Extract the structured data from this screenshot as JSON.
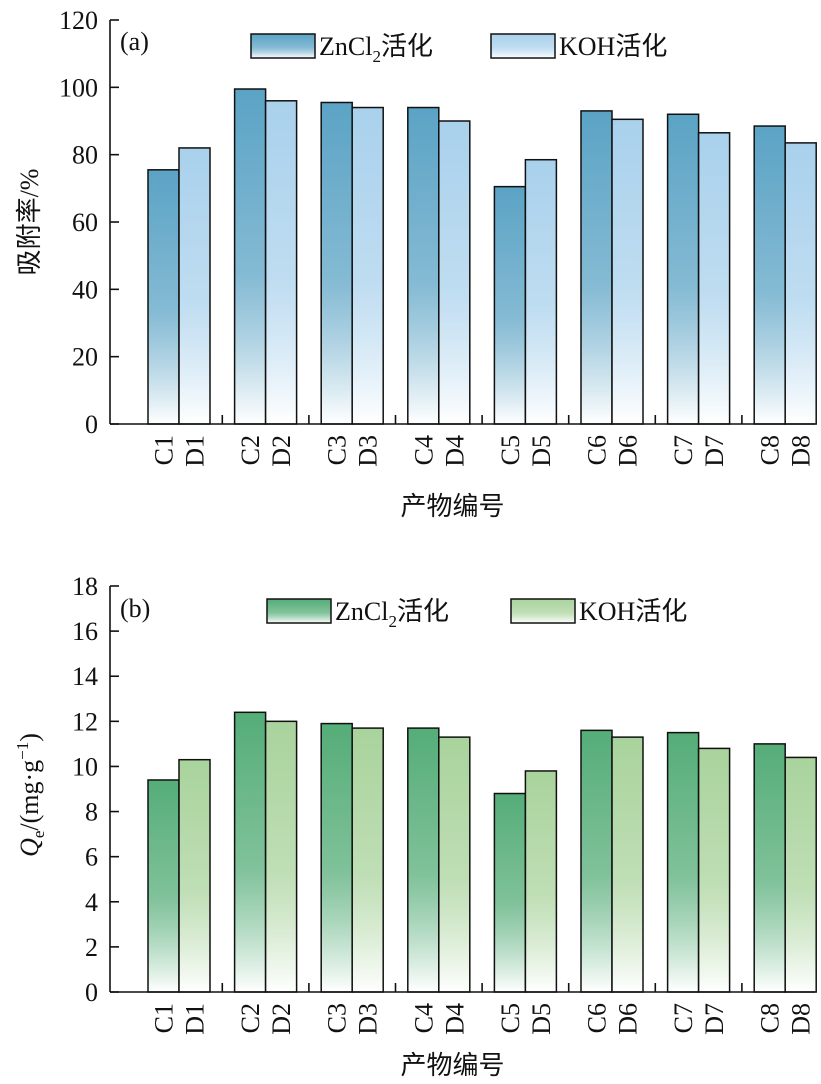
{
  "chart_data": [
    {
      "type": "bar",
      "panel_label": "(a)",
      "ylabel": "吸附率/%",
      "xlabel": "产物编号",
      "ylim": [
        0,
        120
      ],
      "yticks": [
        0,
        20,
        40,
        60,
        80,
        100,
        120
      ],
      "pairs": [
        "1",
        "2",
        "3",
        "4",
        "5",
        "6",
        "7",
        "8"
      ],
      "series": [
        {
          "name": "ZnCl2活化",
          "legend_base": "ZnCl",
          "legend_sub": "2",
          "legend_tail": "活化",
          "prefix": "C",
          "color": "#5ba3c5",
          "values": [
            75.5,
            99.5,
            95.5,
            94.0,
            70.5,
            93.0,
            92.0,
            88.5
          ]
        },
        {
          "name": "KOH活化",
          "legend_base": "KOH活化",
          "legend_sub": "",
          "legend_tail": "",
          "prefix": "D",
          "color": "#a9d1ec",
          "values": [
            82.0,
            96.0,
            94.0,
            90.0,
            78.5,
            90.5,
            86.5,
            83.5
          ]
        }
      ]
    },
    {
      "type": "bar",
      "panel_label": "(b)",
      "ylabel": "Qe/(mg·g−1)",
      "ylabel_parts": {
        "q": "Q",
        "e": "e",
        "mid": "/(mg·g",
        "exp": "−1",
        "end": ")"
      },
      "xlabel": "产物编号",
      "ylim": [
        0,
        18
      ],
      "yticks": [
        0,
        2,
        4,
        6,
        8,
        10,
        12,
        14,
        16,
        18
      ],
      "pairs": [
        "1",
        "2",
        "3",
        "4",
        "5",
        "6",
        "7",
        "8"
      ],
      "series": [
        {
          "name": "ZnCl2活化",
          "legend_base": "ZnCl",
          "legend_sub": "2",
          "legend_tail": "活化",
          "prefix": "C",
          "color": "#55ad78",
          "values": [
            9.4,
            12.4,
            11.9,
            11.7,
            8.8,
            11.6,
            11.5,
            11.0
          ]
        },
        {
          "name": "KOH活化",
          "legend_base": "KOH活化",
          "legend_sub": "",
          "legend_tail": "",
          "prefix": "D",
          "color": "#a9d39c",
          "values": [
            10.3,
            12.0,
            11.7,
            11.3,
            9.8,
            11.3,
            10.8,
            10.4
          ]
        }
      ]
    }
  ]
}
